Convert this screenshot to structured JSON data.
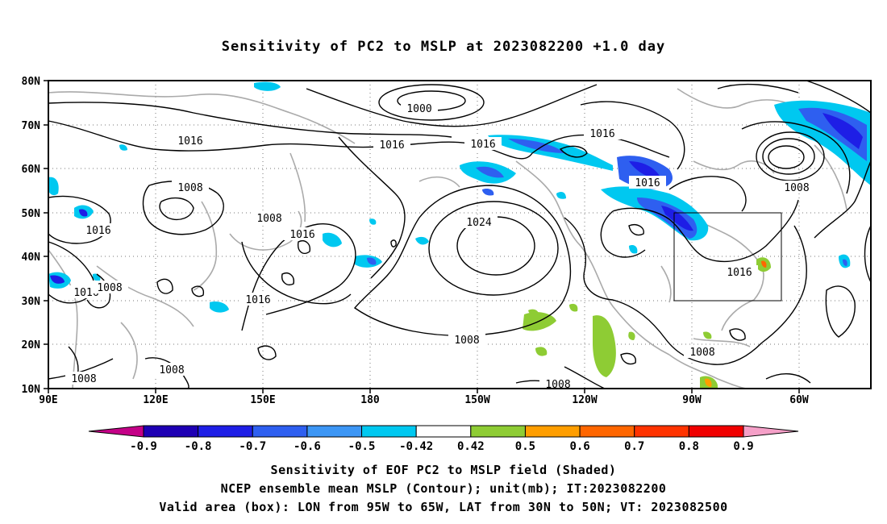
{
  "title": "Sensitivity of PC2 to MSLP at 2023082200 +1.0 day",
  "map": {
    "lat_labels": [
      "80N",
      "70N",
      "60N",
      "50N",
      "40N",
      "30N",
      "20N",
      "10N"
    ],
    "lon_labels": [
      "90E",
      "120E",
      "150E",
      "180",
      "150W",
      "120W",
      "90W",
      "60W"
    ],
    "contour_interval_mb": 8,
    "contour_labels": [
      {
        "text": "1000"
      },
      {
        "text": "1016"
      },
      {
        "text": "1016"
      },
      {
        "text": "1016"
      },
      {
        "text": "1016"
      },
      {
        "text": "1008"
      },
      {
        "text": "1008"
      },
      {
        "text": "1016"
      },
      {
        "text": "1016"
      },
      {
        "text": "1024"
      },
      {
        "text": "1016"
      },
      {
        "text": "1016"
      },
      {
        "text": "1016"
      },
      {
        "text": "1008"
      },
      {
        "text": "1016"
      },
      {
        "text": "1008"
      },
      {
        "text": "1008"
      },
      {
        "text": "1008"
      },
      {
        "text": "1008"
      },
      {
        "text": "1008"
      }
    ],
    "valid_box": {
      "lon_from": "95W",
      "lon_to": "65W",
      "lat_from": "30N",
      "lat_to": "50N"
    }
  },
  "colorbar": {
    "labels": [
      "-0.9",
      "-0.8",
      "-0.7",
      "-0.6",
      "-0.5",
      "-0.42",
      "0.42",
      "0.5",
      "0.6",
      "0.7",
      "0.8",
      "0.9"
    ],
    "colors": [
      "#c40087",
      "#1e00b4",
      "#1e1ee6",
      "#2e5ff0",
      "#3c96f5",
      "#00c8f0",
      "#ffffff",
      "#8ecc34",
      "#ff9e00",
      "#ff6600",
      "#ff3300",
      "#f00000",
      "#f5a0c8"
    ]
  },
  "captions": {
    "line1": "Sensitivity of EOF PC2 to MSLP field (Shaded)",
    "line2": "NCEP ensemble mean MSLP (Contour); unit(mb); IT:2023082200",
    "line3": "Valid area (box): LON from 95W to 65W, LAT from 30N to 50N; VT: 2023082500"
  }
}
